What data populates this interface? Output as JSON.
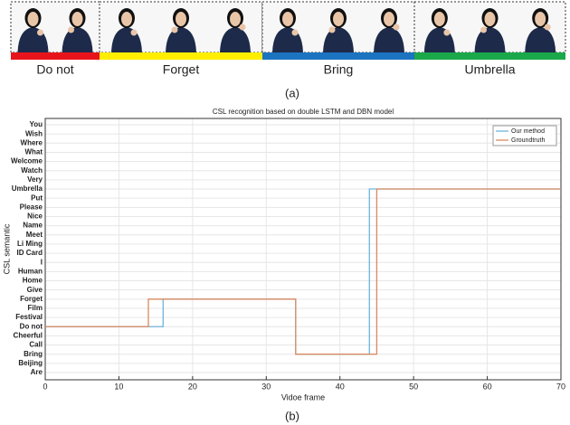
{
  "panel_a": {
    "caption": "(a)",
    "groups": [
      {
        "label": "Do not",
        "color": "#e8141b"
      },
      {
        "label": "Forget",
        "color": "#ffee00"
      },
      {
        "label": "Bring",
        "color": "#1c73c0"
      },
      {
        "label": "Umbrella",
        "color": "#1aa84a"
      }
    ]
  },
  "chart_data": {
    "type": "line",
    "title": "CSL recognition based on double LSTM and DBN model",
    "caption": "(b)",
    "x_label": "Vidoe frame",
    "y_label": "CSL semantic",
    "categories": [
      "Are",
      "Beijing",
      "Bring",
      "Call",
      "Cheerful",
      "Do not",
      "Festival",
      "Film",
      "Forget",
      "Give",
      "Home",
      "Human",
      "I",
      "ID Card",
      "Li Ming",
      "Meet",
      "Name",
      "Nice",
      "Please",
      "Put",
      "Umbrella",
      "Very",
      "Watch",
      "Welcome",
      "What",
      "Where",
      "Wish",
      "You"
    ],
    "xlim": [
      0,
      70
    ],
    "xticks": [
      0,
      10,
      20,
      30,
      40,
      50,
      60,
      70
    ],
    "grid": true,
    "legend": "upper right",
    "series": [
      {
        "name": "Our method",
        "color": "#6fb3dc",
        "x": [
          0,
          16,
          16,
          34,
          34,
          44,
          44,
          70
        ],
        "values": [
          "Do not",
          "Do not",
          "Forget",
          "Forget",
          "Bring",
          "Bring",
          "Umbrella",
          "Umbrella"
        ]
      },
      {
        "name": "Groundtruth",
        "color": "#d98a62",
        "x": [
          0,
          14,
          14,
          34,
          34,
          45,
          45,
          70
        ],
        "values": [
          "Do not",
          "Do not",
          "Forget",
          "Forget",
          "Bring",
          "Bring",
          "Umbrella",
          "Umbrella"
        ]
      }
    ]
  }
}
